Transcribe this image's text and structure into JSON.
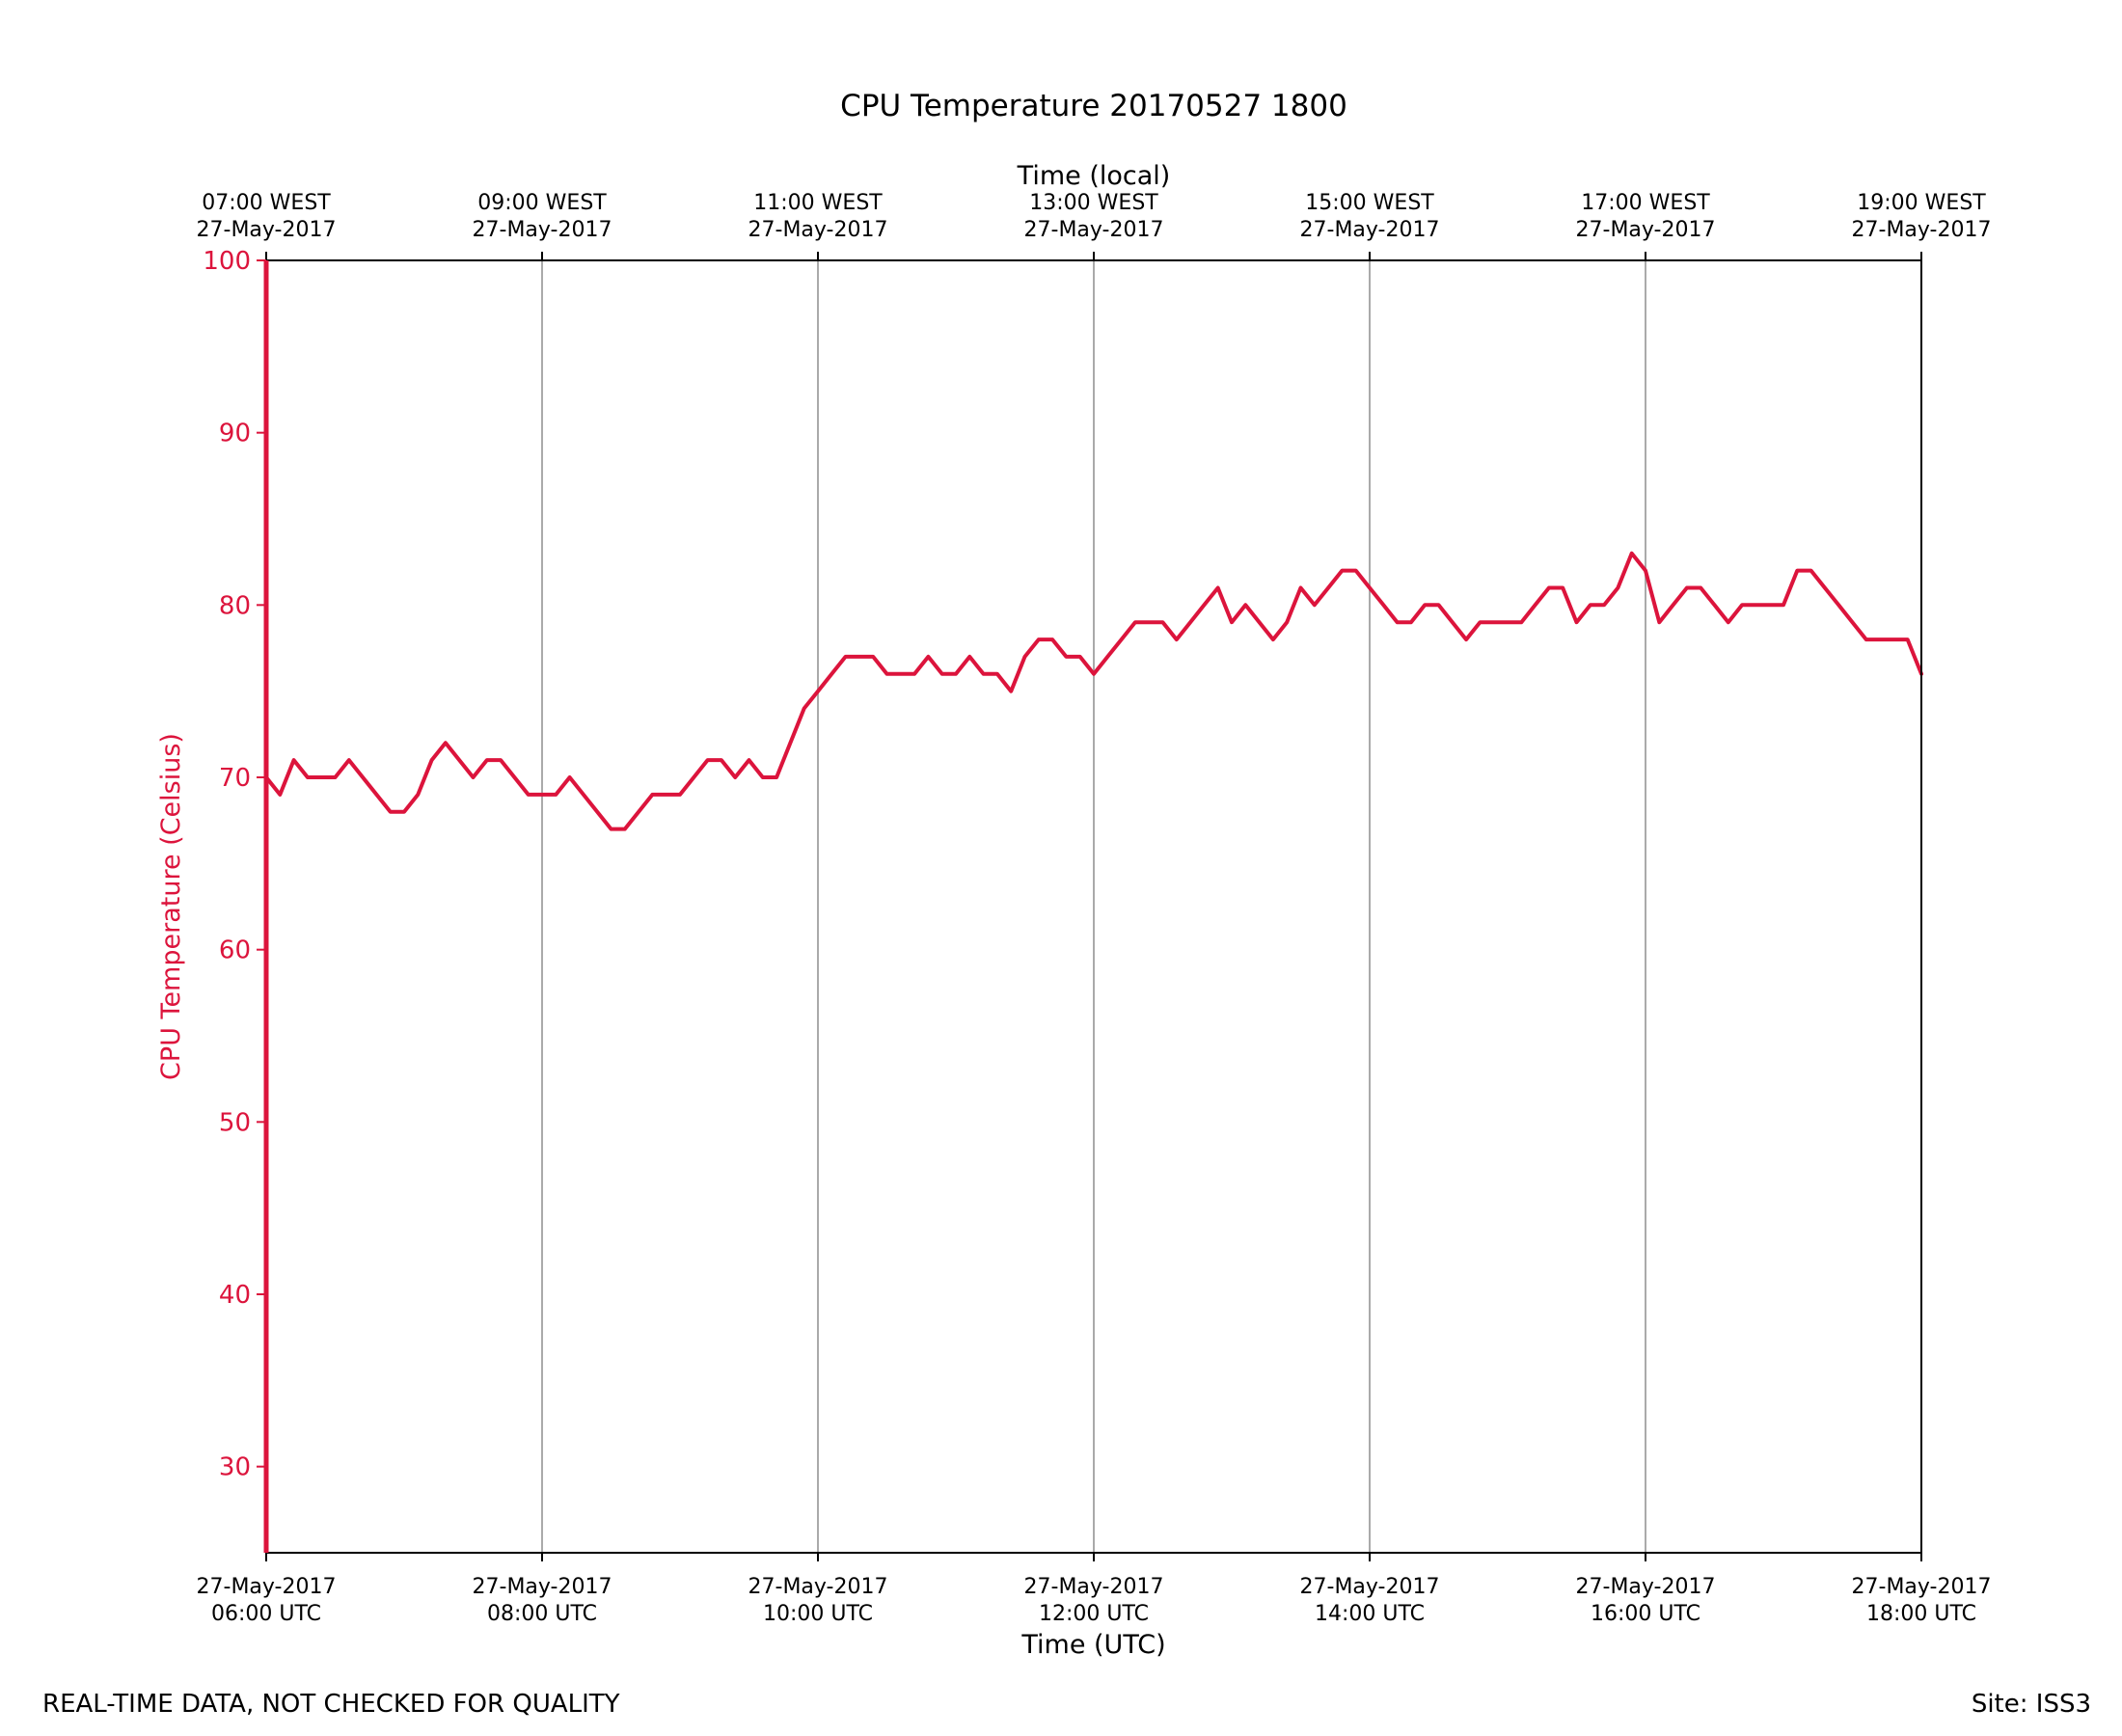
{
  "chart_data": {
    "type": "line",
    "title": "CPU Temperature 20170527 1800",
    "xlabel": "Time (UTC)",
    "x2label": "Time (local)",
    "ylabel": "CPU Temperature (Celsius)",
    "ylim": [
      25,
      100
    ],
    "xlim_hours": [
      0,
      12
    ],
    "yticks": [
      30,
      40,
      50,
      60,
      70,
      80,
      90,
      100
    ],
    "grid": "vertical",
    "legend": "none",
    "x_ticks_bottom": [
      {
        "hours": 0,
        "date": "27-May-2017",
        "time": "06:00 UTC"
      },
      {
        "hours": 2,
        "date": "27-May-2017",
        "time": "08:00 UTC"
      },
      {
        "hours": 4,
        "date": "27-May-2017",
        "time": "10:00 UTC"
      },
      {
        "hours": 6,
        "date": "27-May-2017",
        "time": "12:00 UTC"
      },
      {
        "hours": 8,
        "date": "27-May-2017",
        "time": "14:00 UTC"
      },
      {
        "hours": 10,
        "date": "27-May-2017",
        "time": "16:00 UTC"
      },
      {
        "hours": 12,
        "date": "27-May-2017",
        "time": "18:00 UTC"
      }
    ],
    "x_ticks_top": [
      {
        "hours": 0,
        "time": "07:00 WEST",
        "date": "27-May-2017"
      },
      {
        "hours": 2,
        "time": "09:00 WEST",
        "date": "27-May-2017"
      },
      {
        "hours": 4,
        "time": "11:00 WEST",
        "date": "27-May-2017"
      },
      {
        "hours": 6,
        "time": "13:00 WEST",
        "date": "27-May-2017"
      },
      {
        "hours": 8,
        "time": "15:00 WEST",
        "date": "27-May-2017"
      },
      {
        "hours": 10,
        "time": "17:00 WEST",
        "date": "27-May-2017"
      },
      {
        "hours": 12,
        "time": "19:00 WEST",
        "date": "27-May-2017"
      }
    ],
    "series": [
      {
        "name": "CPU Temperature",
        "color": "#dc143c",
        "x_hours": [
          0,
          0.1,
          0.2,
          0.3,
          0.4,
          0.5,
          0.6,
          0.7,
          0.8,
          0.9,
          1.0,
          1.1,
          1.2,
          1.3,
          1.4,
          1.5,
          1.6,
          1.7,
          1.8,
          1.9,
          2.0,
          2.1,
          2.2,
          2.3,
          2.4,
          2.5,
          2.6,
          2.7,
          2.8,
          2.9,
          3.0,
          3.1,
          3.2,
          3.3,
          3.4,
          3.5,
          3.6,
          3.7,
          3.8,
          3.9,
          4.0,
          4.1,
          4.2,
          4.3,
          4.4,
          4.5,
          4.6,
          4.7,
          4.8,
          4.9,
          5.0,
          5.1,
          5.2,
          5.3,
          5.4,
          5.5,
          5.6,
          5.7,
          5.8,
          5.9,
          6.0,
          6.1,
          6.2,
          6.3,
          6.4,
          6.5,
          6.6,
          6.7,
          6.8,
          6.9,
          7.0,
          7.1,
          7.2,
          7.3,
          7.4,
          7.5,
          7.6,
          7.7,
          7.8,
          7.9,
          8.0,
          8.1,
          8.2,
          8.3,
          8.4,
          8.5,
          8.6,
          8.7,
          8.8,
          8.9,
          9.0,
          9.1,
          9.2,
          9.3,
          9.4,
          9.5,
          9.6,
          9.7,
          9.8,
          9.9,
          10.0,
          10.1,
          10.2,
          10.3,
          10.4,
          10.5,
          10.6,
          10.7,
          10.8,
          10.9,
          11.0,
          11.1,
          11.2,
          11.3,
          11.4,
          11.5,
          11.6,
          11.7,
          11.8,
          11.9,
          12.0
        ],
        "values": [
          70,
          69,
          71,
          70,
          70,
          70,
          71,
          70,
          69,
          68,
          68,
          69,
          71,
          72,
          71,
          70,
          71,
          71,
          70,
          69,
          69,
          69,
          70,
          69,
          68,
          67,
          67,
          68,
          69,
          69,
          69,
          70,
          71,
          71,
          70,
          71,
          70,
          70,
          72,
          74,
          75,
          76,
          77,
          77,
          77,
          76,
          76,
          76,
          77,
          76,
          76,
          77,
          76,
          76,
          75,
          77,
          78,
          78,
          77,
          77,
          76,
          77,
          78,
          79,
          79,
          79,
          78,
          79,
          80,
          81,
          79,
          80,
          79,
          78,
          79,
          81,
          80,
          81,
          82,
          82,
          81,
          80,
          79,
          79,
          80,
          80,
          79,
          78,
          79,
          79,
          79,
          79,
          80,
          81,
          81,
          79,
          80,
          80,
          81,
          83,
          82,
          79,
          80,
          81,
          81,
          80,
          79,
          80,
          80,
          80,
          80,
          82,
          82,
          81,
          80,
          79,
          78,
          78,
          78,
          78,
          76
        ]
      }
    ]
  },
  "footer": {
    "left": "REAL-TIME DATA, NOT CHECKED FOR QUALITY",
    "right": "Site: ISS3"
  }
}
